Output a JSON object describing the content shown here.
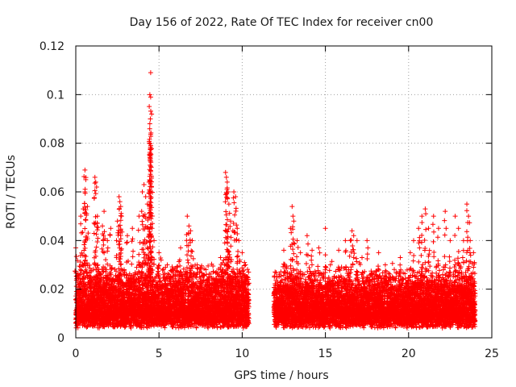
{
  "chart_data": {
    "type": "scatter",
    "title": "Day 156 of 2022, Rate Of TEC Index for receiver cn00",
    "xlabel": "GPS time / hours",
    "ylabel": "ROTI / TECUs",
    "xlim": [
      0,
      25
    ],
    "ylim": [
      0,
      0.12
    ],
    "xticks": [
      0,
      5,
      10,
      15,
      20,
      25
    ],
    "yticks": [
      0,
      0.02,
      0.04,
      0.06,
      0.08,
      0.1,
      0.12
    ],
    "xtick_labels": [
      "0",
      "5",
      "10",
      "15",
      "20",
      "25"
    ],
    "ytick_labels": [
      "0",
      "0.02",
      "0.04",
      "0.06",
      "0.08",
      "0.1",
      "0.12"
    ],
    "grid": true,
    "marker": "+",
    "color": "#ff0000",
    "data_gap_hours": [
      10.4,
      11.9
    ],
    "series": [
      {
        "name": "ROTI",
        "points": [
          [
            0.0,
            0.037
          ],
          [
            0.3,
            0.05
          ],
          [
            0.45,
            0.053
          ],
          [
            0.55,
            0.069
          ],
          [
            0.6,
            0.065
          ],
          [
            0.55,
            0.06
          ],
          [
            0.7,
            0.054
          ],
          [
            1.15,
            0.066
          ],
          [
            1.2,
            0.064
          ],
          [
            1.25,
            0.062
          ],
          [
            1.3,
            0.05
          ],
          [
            1.6,
            0.046
          ],
          [
            1.7,
            0.052
          ],
          [
            1.9,
            0.04
          ],
          [
            2.1,
            0.045
          ],
          [
            2.5,
            0.048
          ],
          [
            2.6,
            0.058
          ],
          [
            2.65,
            0.056
          ],
          [
            2.7,
            0.054
          ],
          [
            2.75,
            0.05
          ],
          [
            3.1,
            0.042
          ],
          [
            3.4,
            0.045
          ],
          [
            3.8,
            0.05
          ],
          [
            4.0,
            0.06
          ],
          [
            4.1,
            0.063
          ],
          [
            4.2,
            0.058
          ],
          [
            4.3,
            0.055
          ],
          [
            4.35,
            0.045
          ],
          [
            4.4,
            0.064
          ],
          [
            4.45,
            0.1
          ],
          [
            4.5,
            0.109
          ],
          [
            4.5,
            0.099
          ],
          [
            4.48,
            0.09
          ],
          [
            4.45,
            0.088
          ],
          [
            4.5,
            0.079
          ],
          [
            4.55,
            0.062
          ],
          [
            4.6,
            0.047
          ],
          [
            4.7,
            0.04
          ],
          [
            5.0,
            0.035
          ],
          [
            5.5,
            0.03
          ],
          [
            6.3,
            0.037
          ],
          [
            6.7,
            0.05
          ],
          [
            6.8,
            0.046
          ],
          [
            6.9,
            0.044
          ],
          [
            7.0,
            0.04
          ],
          [
            7.3,
            0.03
          ],
          [
            8.0,
            0.025
          ],
          [
            8.7,
            0.033
          ],
          [
            9.0,
            0.068
          ],
          [
            9.05,
            0.066
          ],
          [
            9.1,
            0.064
          ],
          [
            9.15,
            0.06
          ],
          [
            9.2,
            0.055
          ],
          [
            9.3,
            0.048
          ],
          [
            9.5,
            0.06
          ],
          [
            9.6,
            0.058
          ],
          [
            9.7,
            0.045
          ],
          [
            9.8,
            0.04
          ],
          [
            10.0,
            0.035
          ],
          [
            10.2,
            0.03
          ],
          [
            12.1,
            0.025
          ],
          [
            12.5,
            0.036
          ],
          [
            12.9,
            0.045
          ],
          [
            13.0,
            0.054
          ],
          [
            13.05,
            0.05
          ],
          [
            13.1,
            0.048
          ],
          [
            13.3,
            0.04
          ],
          [
            13.5,
            0.035
          ],
          [
            13.9,
            0.042
          ],
          [
            14.2,
            0.036
          ],
          [
            14.6,
            0.037
          ],
          [
            15.0,
            0.045
          ],
          [
            15.3,
            0.03
          ],
          [
            15.8,
            0.036
          ],
          [
            16.2,
            0.04
          ],
          [
            16.5,
            0.04
          ],
          [
            16.6,
            0.044
          ],
          [
            16.7,
            0.042
          ],
          [
            16.9,
            0.04
          ],
          [
            17.2,
            0.033
          ],
          [
            17.5,
            0.04
          ],
          [
            18.2,
            0.035
          ],
          [
            18.6,
            0.03
          ],
          [
            19.5,
            0.033
          ],
          [
            20.1,
            0.035
          ],
          [
            20.3,
            0.04
          ],
          [
            20.6,
            0.045
          ],
          [
            20.8,
            0.05
          ],
          [
            21.0,
            0.053
          ],
          [
            21.2,
            0.045
          ],
          [
            21.5,
            0.05
          ],
          [
            21.8,
            0.045
          ],
          [
            22.2,
            0.052
          ],
          [
            22.5,
            0.04
          ],
          [
            22.8,
            0.05
          ],
          [
            23.0,
            0.045
          ],
          [
            23.3,
            0.04
          ],
          [
            23.5,
            0.055
          ],
          [
            23.6,
            0.05
          ],
          [
            23.7,
            0.04
          ],
          [
            23.9,
            0.035
          ]
        ],
        "baseline_generated": {
          "description": "dense cloud of background ROTI values",
          "segments": [
            {
              "x_from": 0.0,
              "x_to": 10.4,
              "y_min": 0.004,
              "y_max": 0.028
            },
            {
              "x_from": 11.9,
              "x_to": 24.0,
              "y_min": 0.004,
              "y_max": 0.026
            }
          ],
          "step_hours": 0.006,
          "points_per_step": 3
        }
      }
    ]
  }
}
